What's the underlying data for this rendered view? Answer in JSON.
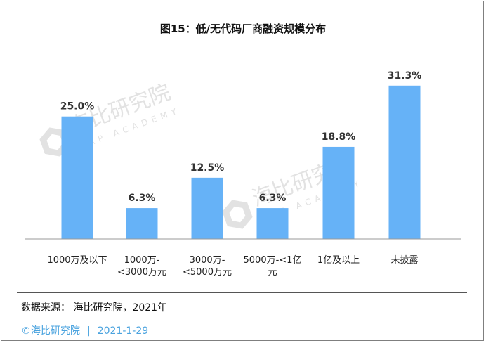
{
  "chart_data": {
    "type": "bar",
    "title": "图15：低/无代码厂商融资规模分布",
    "categories": [
      "1000万及以下",
      "1000万-\n<3000万元",
      "3000万-\n<5000万元",
      "5000万-<1亿\n元",
      "1亿及以上",
      "未披露"
    ],
    "values": [
      25.0,
      6.3,
      12.5,
      6.3,
      18.8,
      31.3
    ],
    "value_labels": [
      "25.0%",
      "6.3%",
      "12.5%",
      "6.3%",
      "18.8%",
      "31.3%"
    ],
    "xlabel": "",
    "ylabel": "",
    "ylim": [
      0,
      35
    ],
    "grid": false,
    "legend": "none",
    "bar_color": "#66b2f7"
  },
  "watermark": {
    "name": "海比研究院",
    "subtitle": "HAP ACADEMY"
  },
  "source": "数据来源： 海比研究院，2021年",
  "footer": {
    "brand": "©海比研究院",
    "separator": "|",
    "date": "2021-1-29"
  },
  "colors": {
    "accent": "#4aa3df",
    "watermark": "#d9d9d9"
  }
}
